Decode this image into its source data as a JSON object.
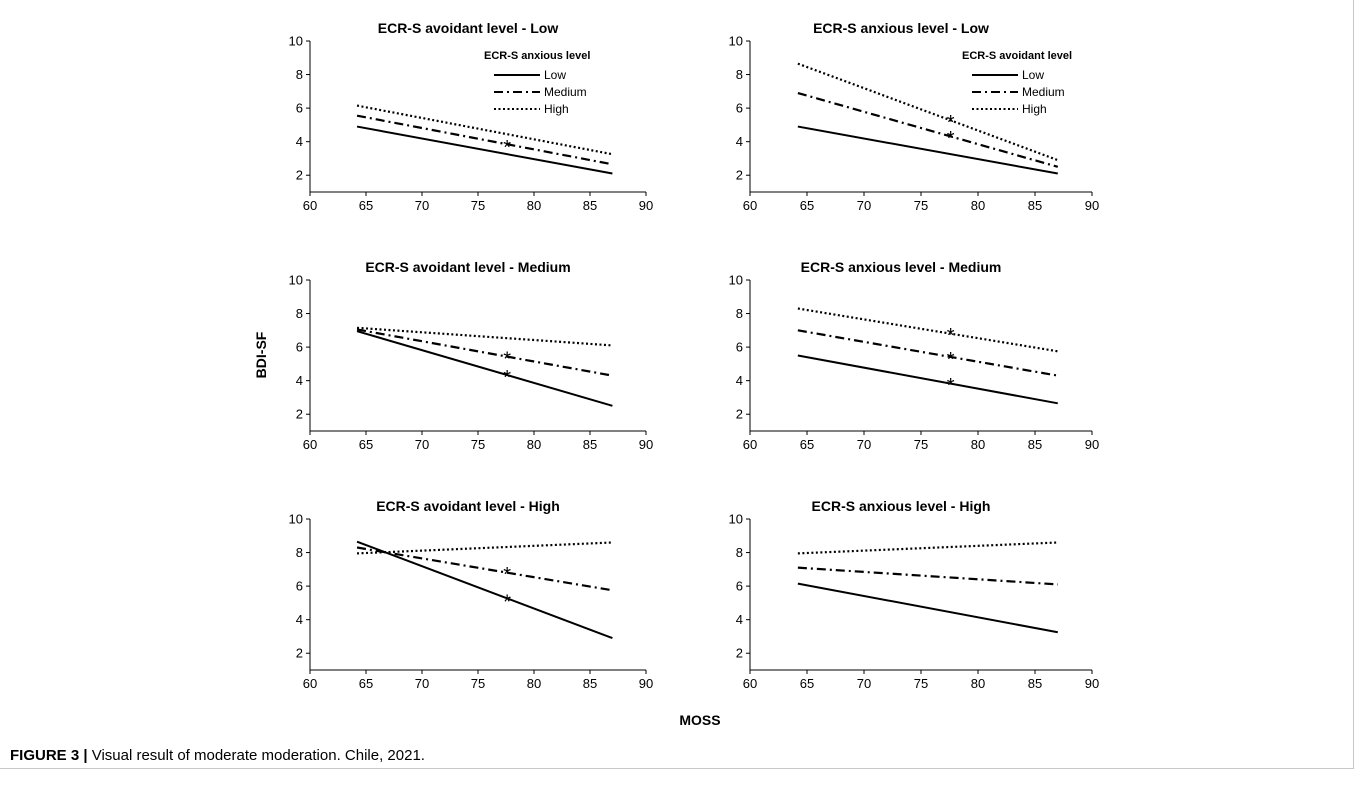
{
  "caption": {
    "label": "FIGURE 3 |",
    "text": " Visual result of moderate moderation. Chile, 2021."
  },
  "axes": {
    "xlabel": "MOSS",
    "ylabel": "BDI-SF"
  },
  "chart_data": [
    {
      "type": "line",
      "title": "ECR-S avoidant level - Low",
      "legend_title": "ECR-S anxious level",
      "legend_position": "top-right",
      "xlim": [
        60,
        90
      ],
      "ylim": [
        1,
        10
      ],
      "xticks": [
        60,
        65,
        70,
        75,
        80,
        85,
        90
      ],
      "yticks": [
        2,
        4,
        6,
        8,
        10
      ],
      "series": [
        {
          "name": "Low",
          "style": "solid",
          "x": [
            64.2,
            87
          ],
          "y": [
            4.9,
            2.1
          ]
        },
        {
          "name": "Medium",
          "style": "dashed",
          "x": [
            64.2,
            87
          ],
          "y": [
            5.55,
            2.65
          ]
        },
        {
          "name": "High",
          "style": "dotted",
          "x": [
            64.2,
            87
          ],
          "y": [
            6.15,
            3.25
          ]
        }
      ],
      "markers": [
        {
          "x": 77.6,
          "y": 3.8
        }
      ]
    },
    {
      "type": "line",
      "title": "ECR-S anxious level - Low",
      "legend_title": "ECR-S avoidant level",
      "legend_position": "top-right",
      "xlim": [
        60,
        90
      ],
      "ylim": [
        1,
        10
      ],
      "xticks": [
        60,
        65,
        70,
        75,
        80,
        85,
        90
      ],
      "yticks": [
        2,
        4,
        6,
        8,
        10
      ],
      "series": [
        {
          "name": "Low",
          "style": "solid",
          "x": [
            64.2,
            87
          ],
          "y": [
            4.9,
            2.1
          ]
        },
        {
          "name": "Medium",
          "style": "dashed",
          "x": [
            64.2,
            87
          ],
          "y": [
            6.9,
            2.5
          ]
        },
        {
          "name": "High",
          "style": "dotted",
          "x": [
            64.2,
            87
          ],
          "y": [
            8.65,
            2.9
          ]
        }
      ],
      "markers": [
        {
          "x": 77.6,
          "y": 4.35
        },
        {
          "x": 77.6,
          "y": 5.3
        }
      ]
    },
    {
      "type": "line",
      "title": "ECR-S avoidant level - Medium",
      "xlim": [
        60,
        90
      ],
      "ylim": [
        1,
        10
      ],
      "xticks": [
        60,
        65,
        70,
        75,
        80,
        85,
        90
      ],
      "yticks": [
        2,
        4,
        6,
        8,
        10
      ],
      "series": [
        {
          "style": "solid",
          "x": [
            64.2,
            87
          ],
          "y": [
            6.95,
            2.5
          ]
        },
        {
          "style": "dashed",
          "x": [
            64.2,
            87
          ],
          "y": [
            7.05,
            4.3
          ]
        },
        {
          "style": "dotted",
          "x": [
            64.2,
            87
          ],
          "y": [
            7.15,
            6.1
          ]
        }
      ],
      "markers": [
        {
          "x": 77.6,
          "y": 4.35
        },
        {
          "x": 77.6,
          "y": 5.45
        }
      ]
    },
    {
      "type": "line",
      "title": "ECR-S anxious level - Medium",
      "xlim": [
        60,
        90
      ],
      "ylim": [
        1,
        10
      ],
      "xticks": [
        60,
        65,
        70,
        75,
        80,
        85,
        90
      ],
      "yticks": [
        2,
        4,
        6,
        8,
        10
      ],
      "series": [
        {
          "style": "solid",
          "x": [
            64.2,
            87
          ],
          "y": [
            5.5,
            2.65
          ]
        },
        {
          "style": "dashed",
          "x": [
            64.2,
            87
          ],
          "y": [
            7.0,
            4.3
          ]
        },
        {
          "style": "dotted",
          "x": [
            64.2,
            87
          ],
          "y": [
            8.3,
            5.75
          ]
        }
      ],
      "markers": [
        {
          "x": 77.6,
          "y": 3.85
        },
        {
          "x": 77.6,
          "y": 5.4
        },
        {
          "x": 77.6,
          "y": 6.85
        }
      ]
    },
    {
      "type": "line",
      "title": "ECR-S avoidant level - High",
      "xlim": [
        60,
        90
      ],
      "ylim": [
        1,
        10
      ],
      "xticks": [
        60,
        65,
        70,
        75,
        80,
        85,
        90
      ],
      "yticks": [
        2,
        4,
        6,
        8,
        10
      ],
      "series": [
        {
          "style": "solid",
          "x": [
            64.2,
            87
          ],
          "y": [
            8.65,
            2.9
          ]
        },
        {
          "style": "dashed",
          "x": [
            64.2,
            87
          ],
          "y": [
            8.3,
            5.75
          ]
        },
        {
          "style": "dotted",
          "x": [
            64.2,
            87
          ],
          "y": [
            7.95,
            8.6
          ]
        }
      ],
      "markers": [
        {
          "x": 77.6,
          "y": 5.2
        },
        {
          "x": 77.6,
          "y": 6.85
        }
      ]
    },
    {
      "type": "line",
      "title": "ECR-S anxious level - High",
      "xlim": [
        60,
        90
      ],
      "ylim": [
        1,
        10
      ],
      "xticks": [
        60,
        65,
        70,
        75,
        80,
        85,
        90
      ],
      "yticks": [
        2,
        4,
        6,
        8,
        10
      ],
      "series": [
        {
          "style": "solid",
          "x": [
            64.2,
            87
          ],
          "y": [
            6.15,
            3.25
          ]
        },
        {
          "style": "dashed",
          "x": [
            64.2,
            87
          ],
          "y": [
            7.1,
            6.1
          ]
        },
        {
          "style": "dotted",
          "x": [
            64.2,
            87
          ],
          "y": [
            7.95,
            8.6
          ]
        }
      ],
      "markers": []
    }
  ]
}
